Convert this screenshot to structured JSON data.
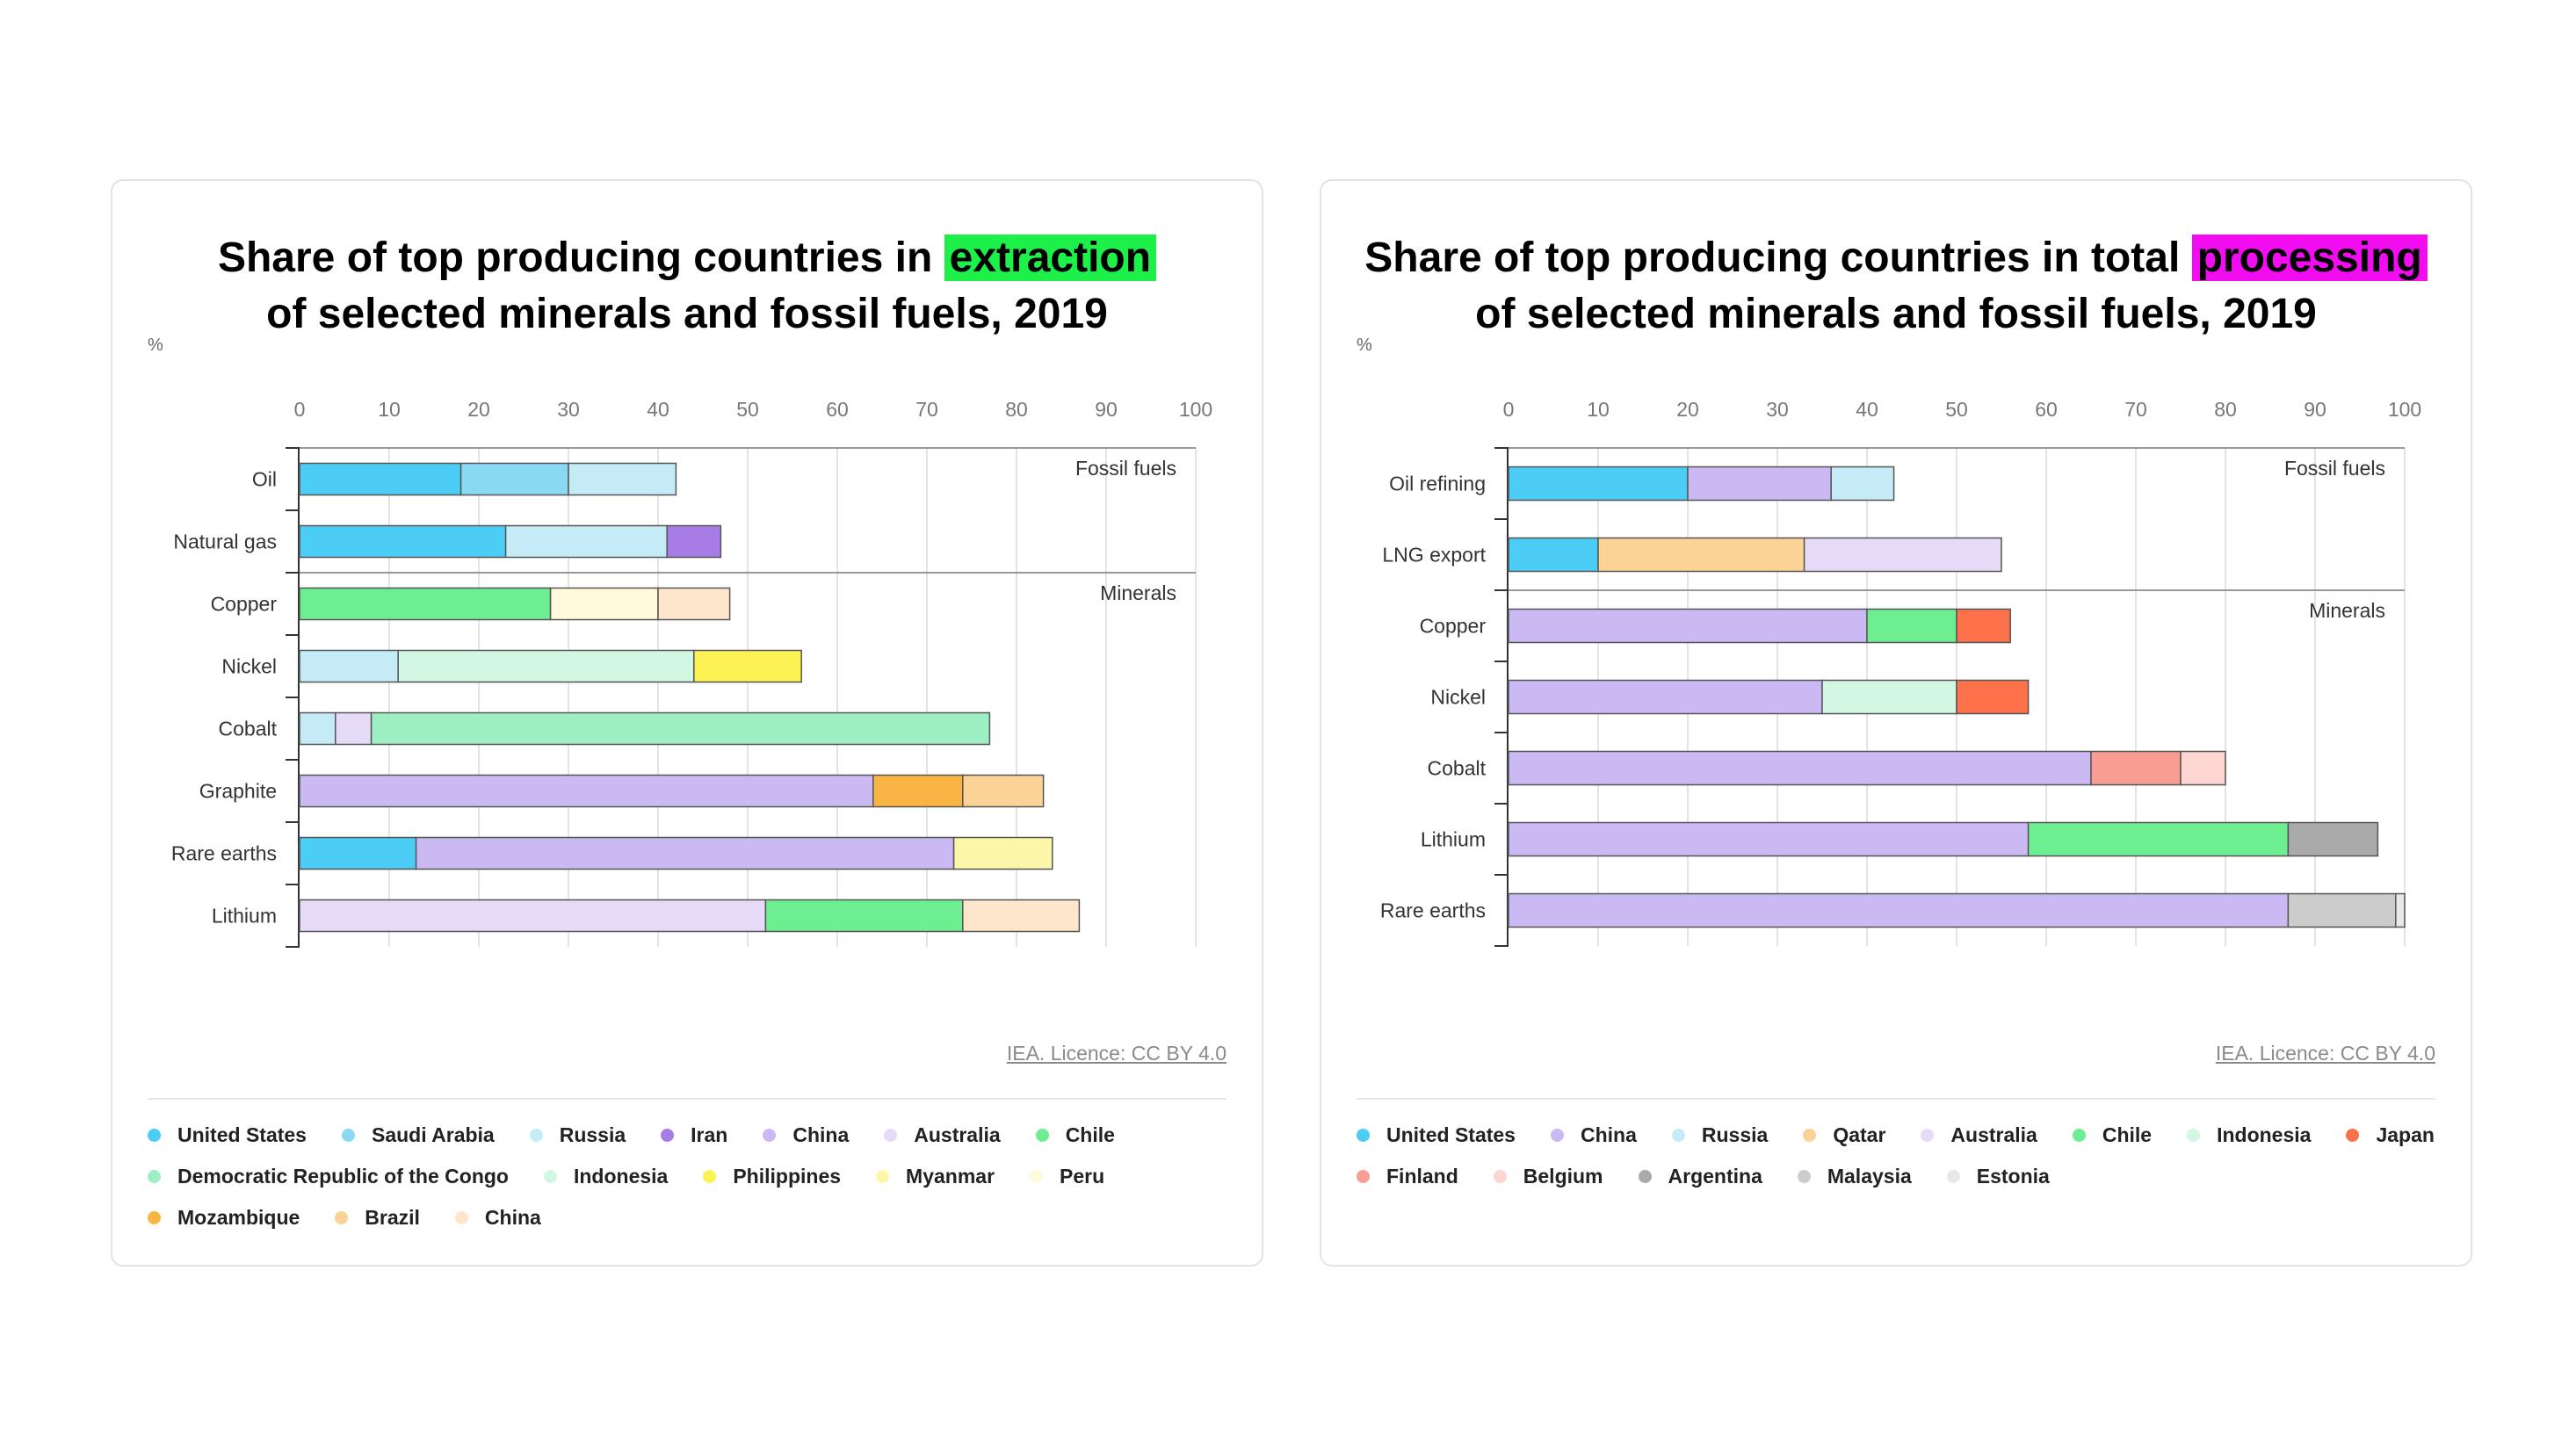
{
  "chart_data": [
    {
      "type": "bar",
      "stacked": true,
      "orientation": "horizontal",
      "title_parts": [
        "Share of top producing countries in ",
        "extraction",
        " of selected minerals and fossil fuels, 2019"
      ],
      "highlight_color": "#1ef04a",
      "unit": "%",
      "xlim": [
        0,
        100
      ],
      "ticks": [
        "0",
        "10",
        "20",
        "30",
        "40",
        "50",
        "60",
        "70",
        "80",
        "90",
        "100"
      ],
      "grid": true,
      "groups": [
        {
          "label": "Fossil fuels",
          "categories": [
            "Oil",
            "Natural gas"
          ]
        },
        {
          "label": "Minerals",
          "categories": [
            "Copper",
            "Nickel",
            "Cobalt",
            "Graphite",
            "Rare earths",
            "Lithium"
          ]
        }
      ],
      "categories": [
        "Oil",
        "Natural gas",
        "Copper",
        "Nickel",
        "Cobalt",
        "Graphite",
        "Rare earths",
        "Lithium"
      ],
      "rows": [
        [
          {
            "country": "United States",
            "value": 18
          },
          {
            "country": "Saudi Arabia",
            "value": 12
          },
          {
            "country": "Russia",
            "value": 12
          }
        ],
        [
          {
            "country": "United States",
            "value": 23
          },
          {
            "country": "Russia",
            "value": 18
          },
          {
            "country": "Iran",
            "value": 6
          }
        ],
        [
          {
            "country": "Chile",
            "value": 28
          },
          {
            "country": "Peru",
            "value": 12
          },
          {
            "country": "China",
            "value": 8
          }
        ],
        [
          {
            "country": "Russia",
            "value": 11
          },
          {
            "country": "Indonesia",
            "value": 33
          },
          {
            "country": "Philippines",
            "value": 12
          }
        ],
        [
          {
            "country": "Russia",
            "value": 4
          },
          {
            "country": "Australia",
            "value": 4
          },
          {
            "country": "Democratic Republic of the Congo",
            "value": 69
          }
        ],
        [
          {
            "country": "China",
            "value": 64
          },
          {
            "country": "Mozambique",
            "value": 10
          },
          {
            "country": "Brazil",
            "value": 9
          }
        ],
        [
          {
            "country": "United States",
            "value": 13
          },
          {
            "country": "China",
            "value": 60
          },
          {
            "country": "Myanmar",
            "value": 11
          }
        ],
        [
          {
            "country": "Australia",
            "value": 52
          },
          {
            "country": "Chile",
            "value": 22
          },
          {
            "country": "China",
            "value": 13
          }
        ]
      ],
      "legend": [
        {
          "name": "United States",
          "color": "#4ccdf5"
        },
        {
          "name": "Saudi Arabia",
          "color": "#8ad9f3"
        },
        {
          "name": "Russia",
          "color": "#c5ebf7"
        },
        {
          "name": "Iran",
          "color": "#a77ce4"
        },
        {
          "name": "China",
          "color": "#cbb9f4"
        },
        {
          "name": "Australia",
          "color": "#e6dbf6"
        },
        {
          "name": "Chile",
          "color": "#6cee91"
        },
        {
          "name": "Democratic Republic of the Congo",
          "color": "#9deec2"
        },
        {
          "name": "Indonesia",
          "color": "#d2f7e2"
        },
        {
          "name": "Philippines",
          "color": "#fdf254"
        },
        {
          "name": "Myanmar",
          "color": "#fcf7a8"
        },
        {
          "name": "Peru",
          "color": "#fffadb"
        },
        {
          "name": "Mozambique",
          "color": "#f9b544"
        },
        {
          "name": "Brazil",
          "color": "#fbd396"
        },
        {
          "name": "China",
          "color": "#fde6cc"
        }
      ],
      "credit": "IEA. Licence: CC BY 4.0"
    },
    {
      "type": "bar",
      "stacked": true,
      "orientation": "horizontal",
      "title_parts": [
        "Share of top producing countries in total ",
        "processing",
        " of selected minerals and fossil fuels, 2019"
      ],
      "highlight_color": "#f20cf0",
      "unit": "%",
      "xlim": [
        0,
        100
      ],
      "ticks": [
        "0",
        "10",
        "20",
        "30",
        "40",
        "50",
        "60",
        "70",
        "80",
        "90",
        "100"
      ],
      "grid": true,
      "groups": [
        {
          "label": "Fossil fuels",
          "categories": [
            "Oil refining",
            "LNG export"
          ]
        },
        {
          "label": "Minerals",
          "categories": [
            "Copper",
            "Nickel",
            "Cobalt",
            "Lithium",
            "Rare earths"
          ]
        }
      ],
      "categories": [
        "Oil refining",
        "LNG export",
        "Copper",
        "Nickel",
        "Cobalt",
        "Lithium",
        "Rare earths"
      ],
      "rows": [
        [
          {
            "country": "United States",
            "value": 20
          },
          {
            "country": "China",
            "value": 16
          },
          {
            "country": "Russia",
            "value": 7
          }
        ],
        [
          {
            "country": "United States",
            "value": 10
          },
          {
            "country": "Qatar",
            "value": 23
          },
          {
            "country": "Australia",
            "value": 22
          }
        ],
        [
          {
            "country": "China",
            "value": 40
          },
          {
            "country": "Chile",
            "value": 10
          },
          {
            "country": "Japan",
            "value": 6
          }
        ],
        [
          {
            "country": "China",
            "value": 35
          },
          {
            "country": "Indonesia",
            "value": 15
          },
          {
            "country": "Japan",
            "value": 8
          }
        ],
        [
          {
            "country": "China",
            "value": 65
          },
          {
            "country": "Finland",
            "value": 10
          },
          {
            "country": "Belgium",
            "value": 5
          }
        ],
        [
          {
            "country": "China",
            "value": 58
          },
          {
            "country": "Chile",
            "value": 29
          },
          {
            "country": "Argentina",
            "value": 10
          }
        ],
        [
          {
            "country": "China",
            "value": 87
          },
          {
            "country": "Malaysia",
            "value": 12
          },
          {
            "country": "Estonia",
            "value": 1
          }
        ]
      ],
      "legend": [
        {
          "name": "United States",
          "color": "#4ccdf5"
        },
        {
          "name": "China",
          "color": "#cbb9f4"
        },
        {
          "name": "Russia",
          "color": "#c5ebf7"
        },
        {
          "name": "Qatar",
          "color": "#fbd396"
        },
        {
          "name": "Australia",
          "color": "#e6dbf6"
        },
        {
          "name": "Chile",
          "color": "#6cee91"
        },
        {
          "name": "Indonesia",
          "color": "#d2f7e2"
        },
        {
          "name": "Japan",
          "color": "#fd714b"
        },
        {
          "name": "Finland",
          "color": "#f99d93"
        },
        {
          "name": "Belgium",
          "color": "#fdd5d1"
        },
        {
          "name": "Argentina",
          "color": "#aaaaaa"
        },
        {
          "name": "Malaysia",
          "color": "#cccccc"
        },
        {
          "name": "Estonia",
          "color": "#e8e8e8"
        }
      ],
      "credit": "IEA. Licence: CC BY 4.0"
    }
  ]
}
